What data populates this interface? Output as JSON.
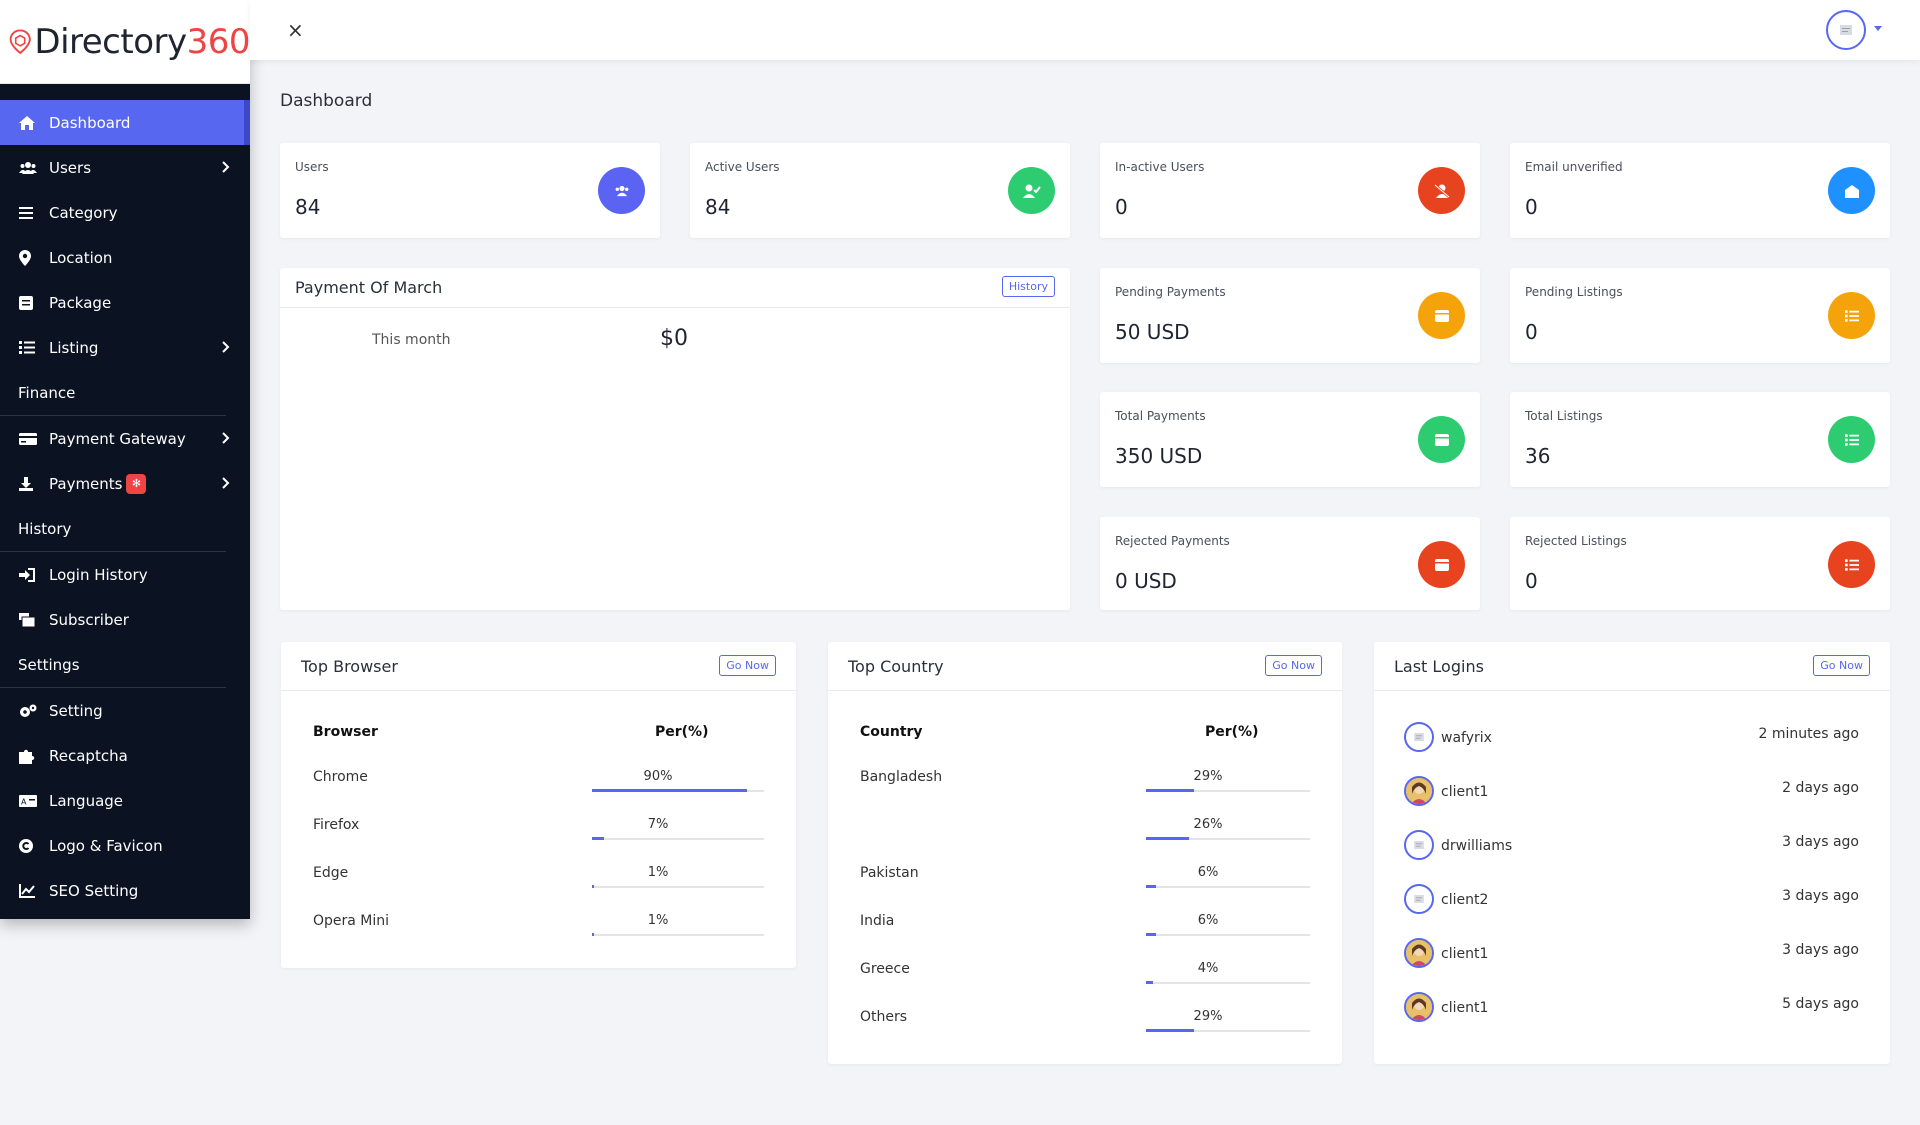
{
  "brand": {
    "name": "Directory",
    "number": "360"
  },
  "sidebar": {
    "items": [
      {
        "label": "Dashboard",
        "icon": "home-icon"
      },
      {
        "label": "Users",
        "icon": "users-icon"
      },
      {
        "label": "Category",
        "icon": "list-icon"
      },
      {
        "label": "Location",
        "icon": "map-pin-icon"
      },
      {
        "label": "Package",
        "icon": "package-icon"
      },
      {
        "label": "Listing",
        "icon": "listing-icon"
      },
      {
        "label": "Finance"
      },
      {
        "label": "Payment Gateway",
        "icon": "credit-card-icon"
      },
      {
        "label": "Payments",
        "icon": "download-icon"
      },
      {
        "label": "History"
      },
      {
        "label": "Login History",
        "icon": "login-icon"
      },
      {
        "label": "Subscriber",
        "icon": "subscriber-icon"
      },
      {
        "label": "Settings"
      },
      {
        "label": "Setting",
        "icon": "gears-icon"
      },
      {
        "label": "Recaptcha",
        "icon": "puzzle-icon"
      },
      {
        "label": "Language",
        "icon": "language-icon"
      },
      {
        "label": "Logo & Favicon",
        "icon": "copyright-icon"
      },
      {
        "label": "SEO Setting",
        "icon": "chart-line-icon"
      }
    ]
  },
  "topbar": {
    "close": "×"
  },
  "page": {
    "title": "Dashboard"
  },
  "stats": [
    {
      "label": "Users",
      "value": "84",
      "color": "#5b63f2"
    },
    {
      "label": "Active Users",
      "value": "84",
      "color": "#2ecc71"
    },
    {
      "label": "In-active Users",
      "value": "0",
      "color": "#e8431f"
    },
    {
      "label": "Email unverified",
      "value": "0",
      "color": "#1e90ff"
    },
    {
      "label": "Pending Payments",
      "value": "50 USD",
      "color": "#f5a30a"
    },
    {
      "label": "Pending Listings",
      "value": "0",
      "color": "#f5a30a"
    },
    {
      "label": "Total Payments",
      "value": "350 USD",
      "color": "#2ecc71"
    },
    {
      "label": "Total Listings",
      "value": "36",
      "color": "#2ecc71"
    },
    {
      "label": "Rejected Payments",
      "value": "0 USD",
      "color": "#e8431f"
    },
    {
      "label": "Rejected Listings",
      "value": "0",
      "color": "#e8431f"
    }
  ],
  "payment": {
    "title": "Payment Of March",
    "button": "History",
    "label": "This month",
    "amount": "$0"
  },
  "browser": {
    "title": "Top Browser",
    "button": "Go Now",
    "col1": "Browser",
    "col2": "Per(%)",
    "rows": [
      {
        "name": "Chrome",
        "pct": "90%",
        "value": 90
      },
      {
        "name": "Firefox",
        "pct": "7%",
        "value": 7
      },
      {
        "name": "Edge",
        "pct": "1%",
        "value": 1
      },
      {
        "name": "Opera Mini",
        "pct": "1%",
        "value": 1
      }
    ]
  },
  "country": {
    "title": "Top Country",
    "button": "Go Now",
    "col1": "Country",
    "col2": "Per(%)",
    "rows": [
      {
        "name": "Bangladesh",
        "pct": "29%",
        "value": 29
      },
      {
        "name": "",
        "pct": "26%",
        "value": 26
      },
      {
        "name": "Pakistan",
        "pct": "6%",
        "value": 6
      },
      {
        "name": "India",
        "pct": "6%",
        "value": 6
      },
      {
        "name": "Greece",
        "pct": "4%",
        "value": 4
      },
      {
        "name": "Others",
        "pct": "29%",
        "value": 29
      }
    ]
  },
  "logins": {
    "title": "Last Logins",
    "button": "Go Now",
    "rows": [
      {
        "name": "wafyrix",
        "time": "2 minutes ago",
        "photo": false
      },
      {
        "name": "client1",
        "time": "2 days ago",
        "photo": true
      },
      {
        "name": "drwilliams",
        "time": "3 days ago",
        "photo": false
      },
      {
        "name": "client2",
        "time": "3 days ago",
        "photo": false
      },
      {
        "name": "client1",
        "time": "3 days ago",
        "photo": true
      },
      {
        "name": "client1",
        "time": "5 days ago",
        "photo": true
      }
    ]
  },
  "colors": {
    "accent": "#5867f0",
    "sidebar": "#0b1222"
  }
}
